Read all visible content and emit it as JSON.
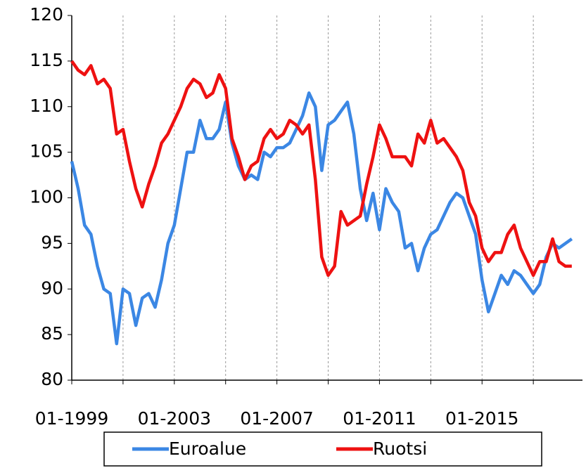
{
  "chart_data": {
    "type": "line",
    "x": [
      "01-1999",
      "04-1999",
      "07-1999",
      "10-1999",
      "01-2000",
      "04-2000",
      "07-2000",
      "10-2000",
      "01-2001",
      "04-2001",
      "07-2001",
      "10-2001",
      "01-2002",
      "04-2002",
      "07-2002",
      "10-2002",
      "01-2003",
      "04-2003",
      "07-2003",
      "10-2003",
      "01-2004",
      "04-2004",
      "07-2004",
      "10-2004",
      "01-2005",
      "04-2005",
      "07-2005",
      "10-2005",
      "01-2006",
      "04-2006",
      "07-2006",
      "10-2006",
      "01-2007",
      "04-2007",
      "07-2007",
      "10-2007",
      "01-2008",
      "04-2008",
      "07-2008",
      "10-2008",
      "01-2009",
      "04-2009",
      "07-2009",
      "10-2009",
      "01-2010",
      "04-2010",
      "07-2010",
      "10-2010",
      "01-2011",
      "04-2011",
      "07-2011",
      "10-2011",
      "01-2012",
      "04-2012",
      "07-2012",
      "10-2012",
      "01-2013",
      "04-2013",
      "07-2013",
      "10-2013",
      "01-2014",
      "04-2014",
      "07-2014",
      "10-2014",
      "01-2015",
      "04-2015",
      "07-2015",
      "10-2015",
      "01-2016",
      "04-2016",
      "07-2016",
      "10-2016",
      "01-2017",
      "04-2017",
      "07-2017",
      "10-2017",
      "01-2018",
      "04-2018",
      "07-2018"
    ],
    "series": [
      {
        "name": "Euroalue",
        "color": "#3b87e4",
        "values": [
          104,
          101,
          97,
          96,
          92.5,
          90,
          89.5,
          84,
          90,
          89.5,
          86,
          89,
          89.5,
          88,
          91,
          95,
          97,
          101,
          105,
          105,
          108.5,
          106.5,
          106.5,
          107.5,
          110.5,
          106,
          103.5,
          102,
          102.5,
          102,
          105,
          104.5,
          105.5,
          105.5,
          106,
          107.5,
          109,
          111.5,
          110,
          103,
          108,
          108.5,
          109.5,
          110.5,
          107,
          101,
          97.5,
          100.5,
          96.5,
          101,
          99.5,
          98.5,
          94.5,
          95,
          92,
          94.5,
          96,
          96.5,
          98,
          99.5,
          100.5,
          100,
          98,
          96,
          91,
          87.5,
          89.5,
          91.5,
          90.5,
          92,
          91.5,
          90.5,
          89.5,
          90.5,
          93.5,
          95,
          94.5,
          95,
          95.5
        ]
      },
      {
        "name": "Ruotsi",
        "color": "#ee1111",
        "values": [
          115,
          114,
          113.5,
          114.5,
          112.5,
          113,
          112,
          107,
          107.5,
          104,
          101,
          99,
          101.5,
          103.5,
          106,
          107,
          108.5,
          110,
          112,
          113,
          112.5,
          111,
          111.5,
          113.5,
          112,
          106.5,
          104.5,
          102,
          103.5,
          104,
          106.5,
          107.5,
          106.5,
          107,
          108.5,
          108,
          107,
          108,
          102,
          93.5,
          91.5,
          92.5,
          98.5,
          97,
          97.5,
          98,
          101.5,
          104.5,
          108,
          106.5,
          104.5,
          104.5,
          104.5,
          103.5,
          107,
          106,
          108.5,
          106,
          106.5,
          105.5,
          104.5,
          103,
          99.5,
          98,
          94.5,
          93,
          94,
          94,
          96,
          97,
          94.5,
          93,
          91.5,
          93,
          93,
          95.5,
          93,
          92.5,
          92.5
        ]
      }
    ],
    "xlim": [
      "01-1999",
      "12-2018"
    ],
    "xticks": [
      "01-1999",
      "01-2003",
      "01-2007",
      "01-2011",
      "01-2015"
    ],
    "xgrid": [
      "01-2001",
      "01-2005",
      "01-2009",
      "01-2013",
      "01-2017"
    ],
    "ylim": [
      80,
      120
    ],
    "yticks": [
      80,
      85,
      90,
      95,
      100,
      105,
      110,
      115,
      120
    ],
    "grid": true,
    "legend": "bottom"
  }
}
